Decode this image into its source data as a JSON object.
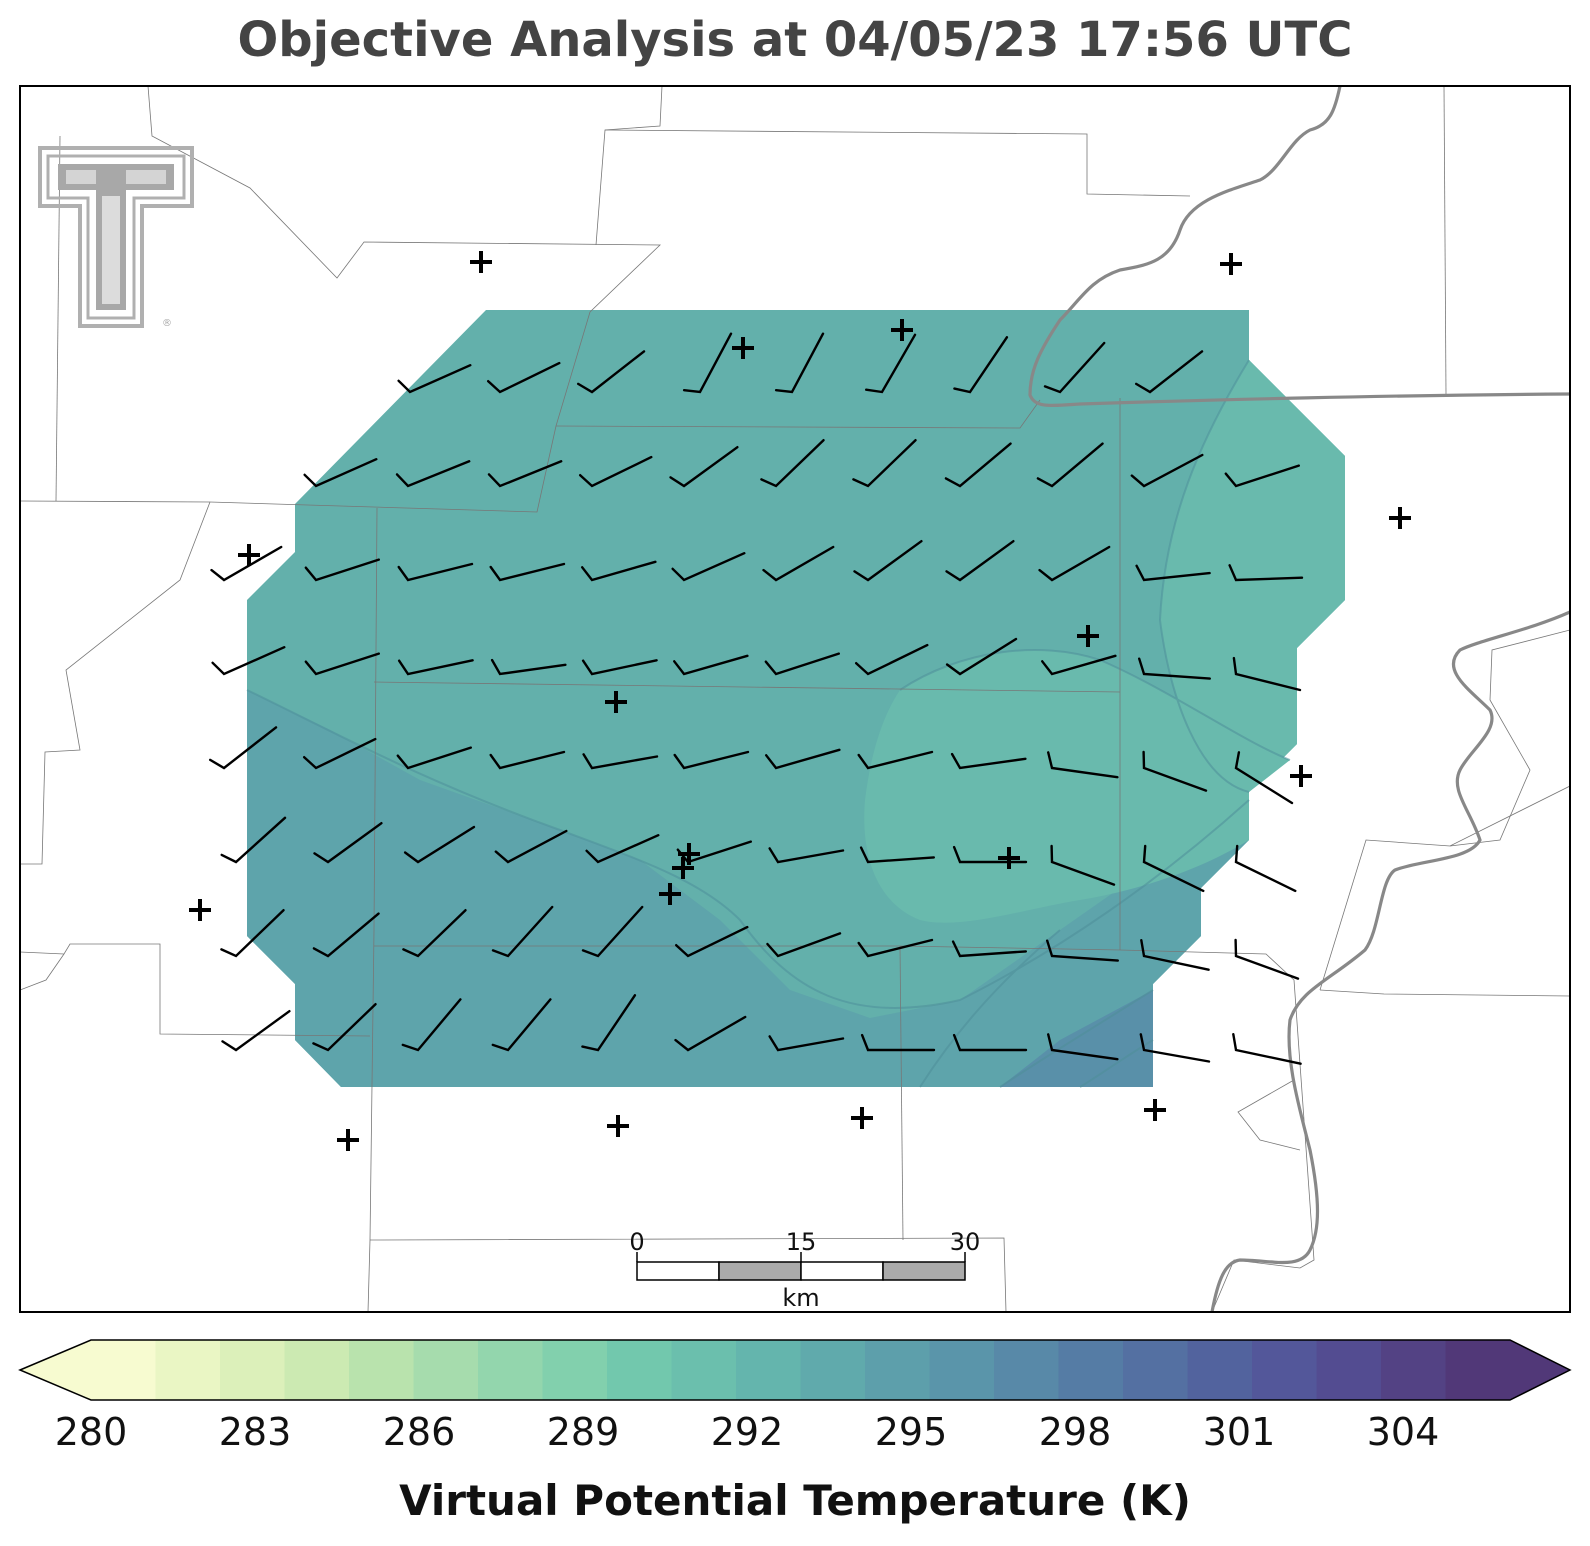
{
  "title": "Objective Analysis at 04/05/23 17:56 UTC",
  "colorbar": {
    "label": "Virtual Potential Temperature (K)",
    "ticks": [
      "280",
      "283",
      "286",
      "289",
      "292",
      "295",
      "298",
      "301",
      "304"
    ],
    "min": 280,
    "max": 306,
    "colors": [
      "#f7fbd0",
      "#eaf6c4",
      "#dcf0ba",
      "#cceab2",
      "#b9e3ad",
      "#a6dcad",
      "#93d6ad",
      "#82d0ad",
      "#72c8ad",
      "#6bbfad",
      "#64b5ad",
      "#60aaac",
      "#5d9fab",
      "#5a95aa",
      "#5889a8",
      "#557ca5",
      "#5470a2",
      "#52639e",
      "#53579a",
      "#534c91",
      "#534284",
      "#513878"
    ]
  },
  "scale_bar": {
    "labels": [
      "0",
      "15",
      "30"
    ],
    "unit": "km"
  },
  "logo": {
    "name": "Texas Tech double-T",
    "mark": "®"
  },
  "analysis": {
    "variable": "virtual potential temperature",
    "value_range_K": [
      292,
      296
    ]
  },
  "stations_count": 20
}
